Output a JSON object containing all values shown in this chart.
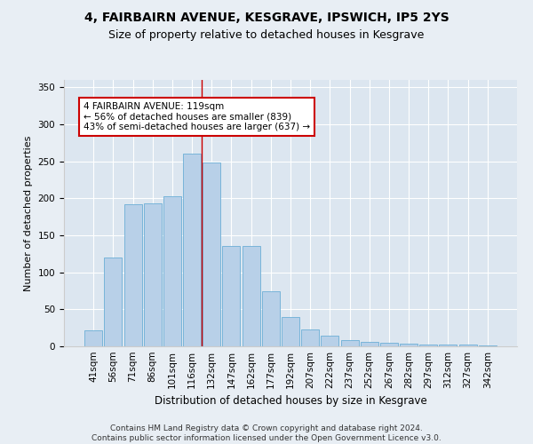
{
  "title1": "4, FAIRBAIRN AVENUE, KESGRAVE, IPSWICH, IP5 2YS",
  "title2": "Size of property relative to detached houses in Kesgrave",
  "xlabel": "Distribution of detached houses by size in Kesgrave",
  "ylabel": "Number of detached properties",
  "categories": [
    "41sqm",
    "56sqm",
    "71sqm",
    "86sqm",
    "101sqm",
    "116sqm",
    "132sqm",
    "147sqm",
    "162sqm",
    "177sqm",
    "192sqm",
    "207sqm",
    "222sqm",
    "237sqm",
    "252sqm",
    "267sqm",
    "282sqm",
    "297sqm",
    "312sqm",
    "327sqm",
    "342sqm"
  ],
  "values": [
    22,
    120,
    192,
    193,
    203,
    260,
    248,
    136,
    136,
    75,
    40,
    23,
    14,
    8,
    6,
    5,
    4,
    3,
    3,
    2,
    1
  ],
  "bar_color": "#b8d0e8",
  "bar_edge_color": "#6baed6",
  "vline_x": 5.5,
  "vline_color": "#cc0000",
  "annotation_text": "4 FAIRBAIRN AVENUE: 119sqm\n← 56% of detached houses are smaller (839)\n43% of semi-detached houses are larger (637) →",
  "annotation_box_color": "#ffffff",
  "annotation_box_edge": "#cc0000",
  "ylim": [
    0,
    360
  ],
  "yticks": [
    0,
    50,
    100,
    150,
    200,
    250,
    300,
    350
  ],
  "background_color": "#e8eef4",
  "plot_bg_color": "#dce6f0",
  "footer": "Contains HM Land Registry data © Crown copyright and database right 2024.\nContains public sector information licensed under the Open Government Licence v3.0.",
  "title1_fontsize": 10,
  "title2_fontsize": 9,
  "xlabel_fontsize": 8.5,
  "ylabel_fontsize": 8,
  "tick_fontsize": 7.5,
  "footer_fontsize": 6.5,
  "annot_fontsize": 7.5
}
